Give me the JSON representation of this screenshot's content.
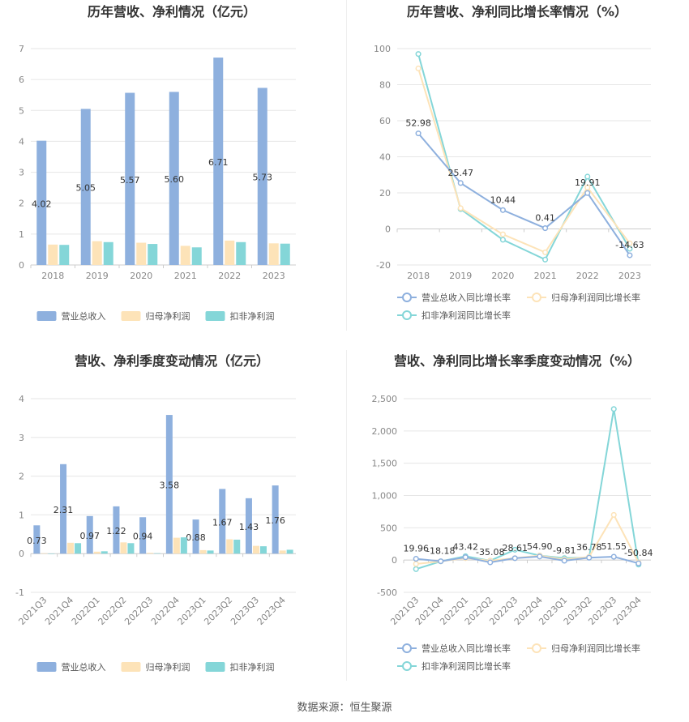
{
  "colors": {
    "revenue": "#8eb0de",
    "net_profit": "#fde3b8",
    "deducted_profit": "#84d6d8",
    "grid": "#e6e6e6",
    "axis_text": "#888888",
    "title_text": "#333333"
  },
  "footer": {
    "source": "数据来源：恒生聚源"
  },
  "chart_data": [
    {
      "id": "annual_bar",
      "type": "bar",
      "title": "历年营收、净利情况（亿元）",
      "categories": [
        "2018",
        "2019",
        "2020",
        "2021",
        "2022",
        "2023"
      ],
      "ylim": [
        0,
        7
      ],
      "yticks": [
        0,
        1,
        2,
        3,
        4,
        5,
        6,
        7
      ],
      "grid": true,
      "legend_position": "bottom",
      "series": [
        {
          "name": "营业总收入",
          "color": "#8eb0de",
          "values": [
            4.02,
            5.05,
            5.57,
            5.6,
            6.71,
            5.73
          ],
          "labels": [
            "4.02",
            "5.05",
            "5.57",
            "5.60",
            "6.71",
            "5.73"
          ]
        },
        {
          "name": "归母净利润",
          "color": "#fde3b8",
          "values": [
            0.66,
            0.77,
            0.72,
            0.62,
            0.79,
            0.7
          ]
        },
        {
          "name": "扣非净利润",
          "color": "#84d6d8",
          "values": [
            0.65,
            0.74,
            0.68,
            0.57,
            0.74,
            0.69
          ]
        }
      ]
    },
    {
      "id": "annual_line",
      "type": "line",
      "title": "历年营收、净利同比增长率情况（%）",
      "categories": [
        "2018",
        "2019",
        "2020",
        "2021",
        "2022",
        "2023"
      ],
      "ylim": [
        -20,
        100
      ],
      "yticks": [
        -20,
        0,
        20,
        40,
        60,
        80,
        100
      ],
      "grid": true,
      "legend_position": "bottom",
      "series": [
        {
          "name": "营业总收入同比增长率",
          "color": "#8eb0de",
          "values": [
            52.98,
            25.47,
            10.44,
            0.41,
            19.91,
            -14.63
          ],
          "labels": [
            "52.98",
            "25.47",
            "10.44",
            "0.41",
            "19.91",
            "-14.63"
          ]
        },
        {
          "name": "归母净利润同比增长率",
          "color": "#fde3b8",
          "values": [
            89.0,
            11.5,
            -3.0,
            -13.0,
            23.0,
            -8.0
          ]
        },
        {
          "name": "扣非净利润同比增长率",
          "color": "#84d6d8",
          "values": [
            97.0,
            11.0,
            -6.0,
            -17.0,
            29.0,
            -11.0
          ]
        }
      ]
    },
    {
      "id": "quarter_bar",
      "type": "bar",
      "title": "营收、净利季度变动情况（亿元）",
      "categories": [
        "2021Q3",
        "2021Q4",
        "2022Q1",
        "2022Q2",
        "2022Q3",
        "2022Q4",
        "2023Q1",
        "2023Q2",
        "2023Q3",
        "2023Q4"
      ],
      "ylim": [
        -1,
        4
      ],
      "yticks": [
        -1,
        0,
        1,
        2,
        3,
        4
      ],
      "grid": true,
      "legend_position": "bottom",
      "series": [
        {
          "name": "营业总收入",
          "color": "#8eb0de",
          "values": [
            0.73,
            2.31,
            0.97,
            1.22,
            0.94,
            3.58,
            0.88,
            1.67,
            1.43,
            1.76
          ],
          "labels": [
            "0.73",
            "2.31",
            "0.97",
            "1.22",
            "0.94",
            "3.58",
            "0.88",
            "1.67",
            "1.43",
            "1.76"
          ]
        },
        {
          "name": "归母净利润",
          "color": "#fde3b8",
          "values": [
            0.01,
            0.28,
            0.05,
            0.29,
            0.02,
            0.41,
            0.09,
            0.37,
            0.2,
            0.08
          ]
        },
        {
          "name": "扣非净利润",
          "color": "#84d6d8",
          "values": [
            -0.01,
            0.27,
            0.06,
            0.27,
            0.01,
            0.42,
            0.08,
            0.36,
            0.19,
            0.1
          ]
        }
      ]
    },
    {
      "id": "quarter_line",
      "type": "line",
      "title": "营收、净利同比增长率季度变动情况（%）",
      "categories": [
        "2021Q3",
        "2021Q4",
        "2022Q1",
        "2022Q2",
        "2022Q3",
        "2022Q4",
        "2023Q1",
        "2023Q2",
        "2023Q3",
        "2023Q4"
      ],
      "ylim": [
        -500,
        2500
      ],
      "yticks": [
        -500,
        0,
        500,
        1000,
        1500,
        2000,
        2500
      ],
      "ytick_labels": [
        "-500",
        "0",
        "500",
        "1,000",
        "1,500",
        "2,000",
        "2,500"
      ],
      "grid": true,
      "legend_position": "bottom",
      "series": [
        {
          "name": "营业总收入同比增长率",
          "color": "#8eb0de",
          "values": [
            19.96,
            -18.18,
            43.42,
            -35.08,
            28.61,
            54.9,
            -9.81,
            36.78,
            51.55,
            -50.84
          ],
          "labels": [
            "19.96",
            "-18.18",
            "43.42",
            "-35.08",
            "28.61",
            "54.90",
            "-9.81",
            "36.78",
            "51.55",
            "-50.84"
          ]
        },
        {
          "name": "归母净利润同比增长率",
          "color": "#fde3b8",
          "values": [
            -60,
            -20,
            30,
            -10,
            30,
            70,
            10,
            50,
            700,
            -40
          ]
        },
        {
          "name": "扣非净利润同比增长率",
          "color": "#84d6d8",
          "values": [
            -140,
            -20,
            60,
            -10,
            160,
            70,
            30,
            40,
            2340,
            -70
          ]
        }
      ]
    }
  ]
}
